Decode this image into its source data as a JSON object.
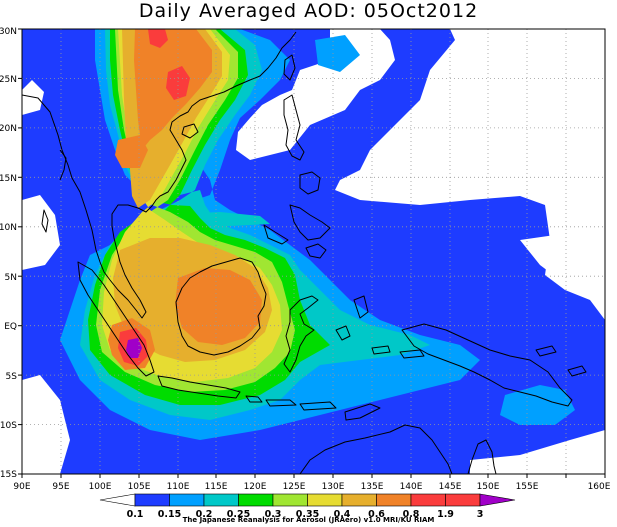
{
  "title": "Daily Averaged AOD: 05Oct2012",
  "credit": "The Japanese Reanalysis for Aerosol (JRAero) v1.0 MRI/KU RIAM",
  "lon_labels": [
    "90E",
    "95E",
    "100E",
    "105E",
    "110E",
    "115E",
    "120E",
    "125E",
    "130E",
    "135E",
    "140E",
    "145E",
    "150E",
    "155E",
    "160E"
  ],
  "lat_labels": [
    "30N",
    "25N",
    "20N",
    "15N",
    "10N",
    "5N",
    "EQ",
    "5S",
    "10S",
    "15S"
  ],
  "colorbar": {
    "levels": [
      "0.1",
      "0.15",
      "0.2",
      "0.25",
      "0.3",
      "0.35",
      "0.4",
      "0.6",
      "0.8",
      "1.9",
      "3"
    ],
    "colors": [
      "#ffffff",
      "#1e3cff",
      "#00a0ff",
      "#00c8c8",
      "#00dc00",
      "#a0e632",
      "#e6dc32",
      "#e6af2d",
      "#f08228",
      "#fa3c3c",
      "#a000c8"
    ]
  }
}
